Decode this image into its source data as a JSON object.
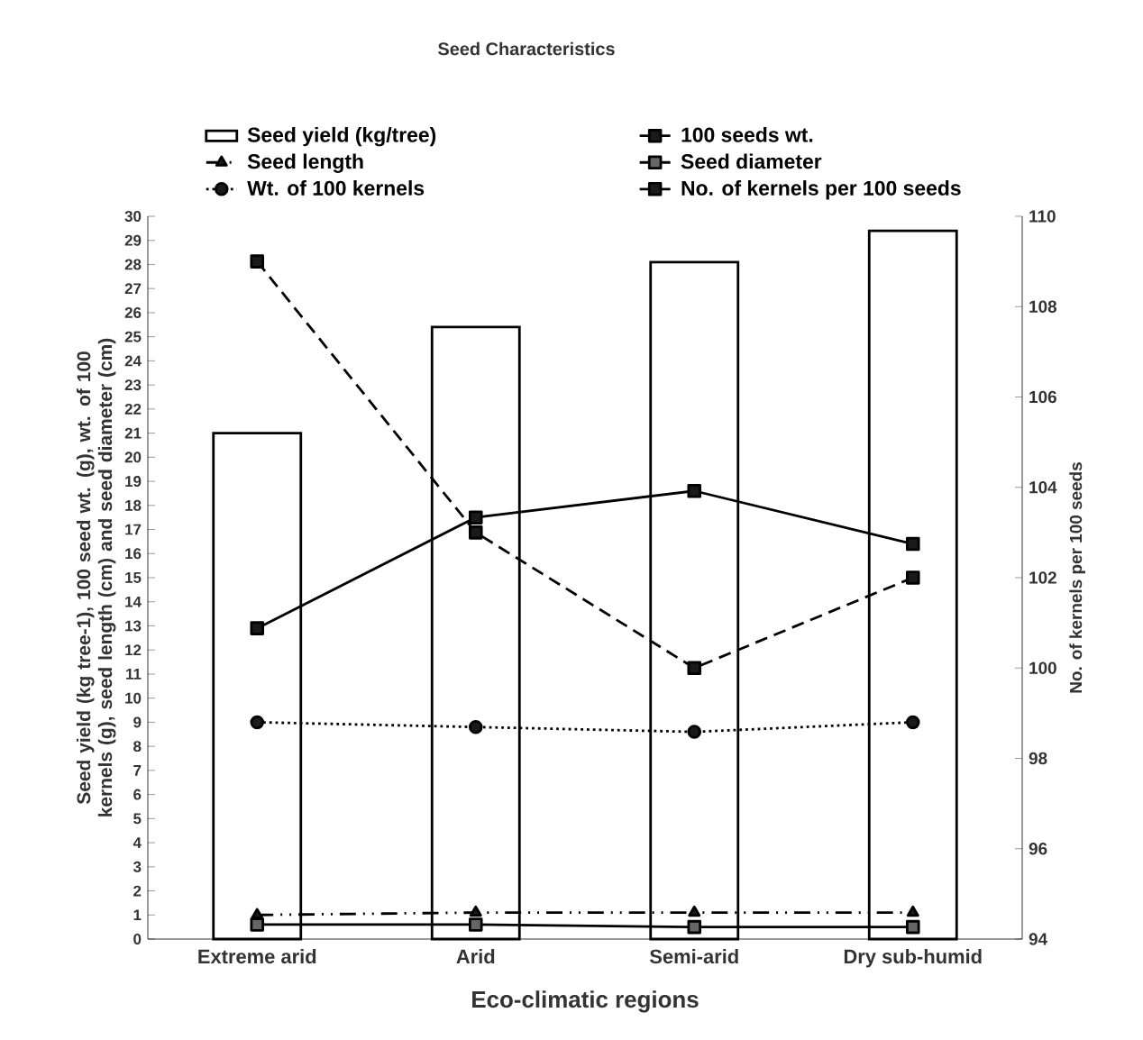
{
  "chart_data": {
    "type": "bar",
    "title": "Seed Characteristics",
    "xlabel": "Eco-climatic regions",
    "ylabel": "Seed yield (kg tree-1), 100 seed wt. (g), wt. of 100 kernels (g), seed length (cm) and seed diameter (cm)",
    "y2label": "No. of kernels per 100 seeds",
    "categories": [
      "Extreme arid",
      "Arid",
      "Semi-arid",
      "Dry sub-humid"
    ],
    "ylim": [
      0,
      30
    ],
    "yticks": [
      0,
      1,
      2,
      3,
      4,
      5,
      6,
      7,
      8,
      9,
      10,
      11,
      12,
      13,
      14,
      15,
      16,
      17,
      18,
      19,
      20,
      21,
      22,
      23,
      24,
      25,
      26,
      27,
      28,
      29,
      30
    ],
    "y2lim": [
      94,
      110
    ],
    "y2ticks": [
      94,
      96,
      98,
      100,
      102,
      104,
      106,
      108,
      110
    ],
    "legend": "top",
    "grid": false,
    "series": [
      {
        "name": "Seed yield (kg/tree)",
        "color": "#ffffff",
        "values": [
          21.0,
          25.4,
          28.1,
          29.4
        ]
      },
      {
        "name": "100 seeds wt.",
        "type": "line",
        "color": "#1a1a1a",
        "marker": "square",
        "line_style": "solid",
        "values": [
          12.9,
          17.5,
          18.6,
          16.4
        ]
      },
      {
        "name": "Seed length",
        "type": "line",
        "color": "#1a1a1a",
        "marker": "triangle",
        "line_style": "dashdot",
        "values": [
          1.0,
          1.1,
          1.1,
          1.1
        ]
      },
      {
        "name": "Seed diameter",
        "type": "line",
        "color": "#666666",
        "marker": "square",
        "line_style": "solid",
        "values": [
          0.6,
          0.6,
          0.5,
          0.5
        ]
      },
      {
        "name": "Wt. of 100 kernels",
        "type": "line",
        "color": "#1a1a1a",
        "marker": "circle",
        "line_style": "dotted",
        "values": [
          9.0,
          8.8,
          8.6,
          9.0
        ]
      },
      {
        "name": "No. of kernels per 100 seeds",
        "type": "line",
        "axis": "y2",
        "color": "#1a1a1a",
        "marker": "square",
        "line_style": "dashed",
        "values": [
          109,
          103,
          100,
          102
        ]
      }
    ]
  }
}
